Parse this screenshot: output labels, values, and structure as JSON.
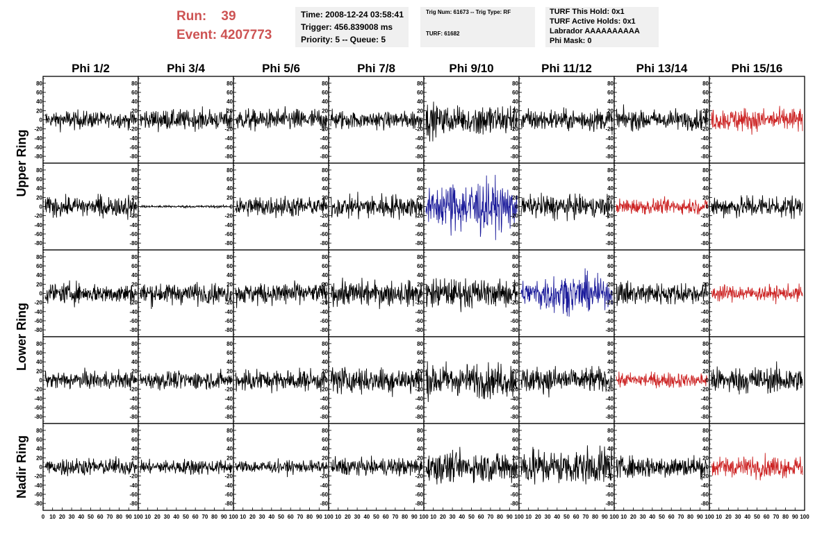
{
  "header": {
    "run_label": "Run:",
    "run_value": "39",
    "event_label": "Event:",
    "event_value": "4207773",
    "time": "Time: 2008-12-24 03:58:41",
    "trigger": "Trigger: 456.839008 ms",
    "priority": "Priority: 5 -- Queue: 5",
    "trig_num": "Trig Num: 61673 -- Trig Type: RF",
    "turf": "TURF: 61682",
    "turf_this_hold": "TURF This Hold: 0x1",
    "turf_active_holds": "TURF Active Holds: 0x1",
    "labrador": "Labrador AAAAAAAAAA",
    "phi_mask": "Phi Mask: 0"
  },
  "colors": {
    "normal": "#000000",
    "red": "#cc2222",
    "blue": "#1a1a9a",
    "accent_text": "#cd5353",
    "box_bg": "#f0f0f0"
  },
  "chart_data": {
    "type": "line",
    "columns": [
      "Phi 1/2",
      "Phi 3/4",
      "Phi 5/6",
      "Phi 7/8",
      "Phi 9/10",
      "Phi 11/12",
      "Phi 13/14",
      "Phi 15/16"
    ],
    "row_groups": [
      {
        "title": "Upper Ring",
        "rows": [
          0,
          1
        ]
      },
      {
        "title": "Lower Ring",
        "rows": [
          2,
          3
        ]
      },
      {
        "title": "Nadir Ring",
        "rows": [
          4
        ]
      }
    ],
    "ylim": [
      -95,
      95
    ],
    "yticks": [
      -80,
      -60,
      -40,
      -20,
      0,
      20,
      40,
      60,
      80
    ],
    "xlim": [
      0,
      100
    ],
    "xticks": [
      0,
      10,
      20,
      30,
      40,
      50,
      60,
      70,
      80,
      90,
      100
    ],
    "x_tick_labels": [
      "0",
      "10",
      "20",
      "30",
      "40",
      "50",
      "60",
      "70",
      "80",
      "90",
      "100"
    ],
    "samples_per_trace": 240,
    "amplitudes": [
      [
        14,
        16,
        16,
        14,
        26,
        17,
        16,
        18
      ],
      [
        18,
        2,
        15,
        18,
        38,
        18,
        12,
        17
      ],
      [
        16,
        17,
        18,
        19,
        22,
        28,
        18,
        12
      ],
      [
        14,
        14,
        17,
        22,
        26,
        20,
        12,
        20
      ],
      [
        14,
        12,
        10,
        14,
        24,
        30,
        17,
        17
      ]
    ],
    "trace_colors": [
      [
        "normal",
        "normal",
        "normal",
        "normal",
        "normal",
        "normal",
        "normal",
        "red"
      ],
      [
        "normal",
        "normal",
        "normal",
        "normal",
        "blue",
        "normal",
        "red",
        "normal"
      ],
      [
        "normal",
        "normal",
        "normal",
        "normal",
        "normal",
        "blue",
        "normal",
        "red"
      ],
      [
        "normal",
        "normal",
        "normal",
        "normal",
        "normal",
        "normal",
        "red",
        "normal"
      ],
      [
        "normal",
        "normal",
        "normal",
        "normal",
        "normal",
        "normal",
        "normal",
        "red"
      ]
    ]
  }
}
